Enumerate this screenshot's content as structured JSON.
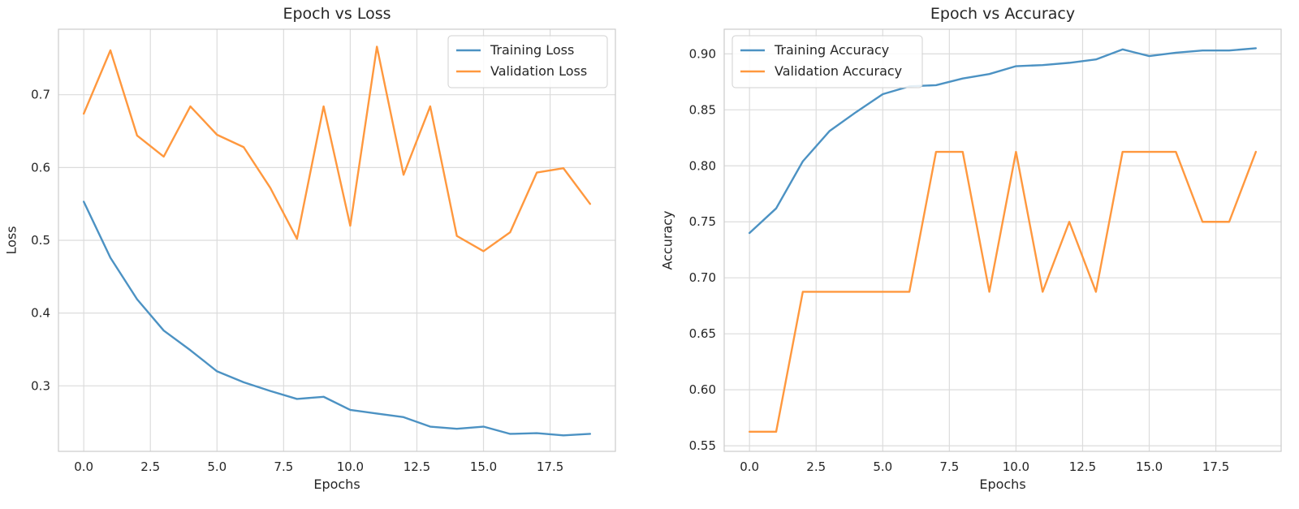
{
  "chart_data": [
    {
      "type": "line",
      "title": "Epoch vs Loss",
      "xlabel": "Epochs",
      "ylabel": "Loss",
      "xlim": [
        -0.95,
        19.95
      ],
      "ylim": [
        0.21,
        0.79
      ],
      "xticks": [
        0.0,
        2.5,
        5.0,
        7.5,
        10.0,
        12.5,
        15.0,
        17.5
      ],
      "xtick_labels": [
        "0.0",
        "2.5",
        "5.0",
        "7.5",
        "10.0",
        "12.5",
        "15.0",
        "17.5"
      ],
      "yticks": [
        0.3,
        0.4,
        0.5,
        0.6,
        0.7
      ],
      "ytick_labels": [
        "0.3",
        "0.4",
        "0.5",
        "0.6",
        "0.7"
      ],
      "grid": true,
      "legend_position": "top-right",
      "x": [
        0,
        1,
        2,
        3,
        4,
        5,
        6,
        7,
        8,
        9,
        10,
        11,
        12,
        13,
        14,
        15,
        16,
        17,
        18,
        19
      ],
      "series": [
        {
          "name": "Training Loss",
          "color": "#4c92c3",
          "values": [
            0.553,
            0.476,
            0.419,
            0.376,
            0.349,
            0.32,
            0.305,
            0.293,
            0.282,
            0.285,
            0.267,
            0.262,
            0.257,
            0.244,
            0.241,
            0.244,
            0.234,
            0.235,
            0.232,
            0.234
          ]
        },
        {
          "name": "Validation Loss",
          "color": "#ff983e",
          "values": [
            0.674,
            0.761,
            0.644,
            0.615,
            0.684,
            0.645,
            0.628,
            0.572,
            0.502,
            0.684,
            0.52,
            0.766,
            0.59,
            0.684,
            0.506,
            0.485,
            0.511,
            0.593,
            0.599,
            0.55
          ]
        }
      ]
    },
    {
      "type": "line",
      "title": "Epoch vs Accuracy",
      "xlabel": "Epochs",
      "ylabel": "Accuracy",
      "xlim": [
        -0.95,
        19.95
      ],
      "ylim": [
        0.545,
        0.922
      ],
      "xticks": [
        0.0,
        2.5,
        5.0,
        7.5,
        10.0,
        12.5,
        15.0,
        17.5
      ],
      "xtick_labels": [
        "0.0",
        "2.5",
        "5.0",
        "7.5",
        "10.0",
        "12.5",
        "15.0",
        "17.5"
      ],
      "yticks": [
        0.55,
        0.6,
        0.65,
        0.7,
        0.75,
        0.8,
        0.85,
        0.9
      ],
      "ytick_labels": [
        "0.55",
        "0.60",
        "0.65",
        "0.70",
        "0.75",
        "0.80",
        "0.85",
        "0.90"
      ],
      "grid": true,
      "legend_position": "top-left",
      "x": [
        0,
        1,
        2,
        3,
        4,
        5,
        6,
        7,
        8,
        9,
        10,
        11,
        12,
        13,
        14,
        15,
        16,
        17,
        18,
        19
      ],
      "series": [
        {
          "name": "Training Accuracy",
          "color": "#4c92c3",
          "values": [
            0.74,
            0.762,
            0.804,
            0.831,
            0.848,
            0.864,
            0.871,
            0.872,
            0.878,
            0.882,
            0.889,
            0.89,
            0.892,
            0.895,
            0.904,
            0.898,
            0.901,
            0.903,
            0.903,
            0.905
          ]
        },
        {
          "name": "Validation Accuracy",
          "color": "#ff983e",
          "values": [
            0.5625,
            0.5625,
            0.6875,
            0.6875,
            0.6875,
            0.6875,
            0.6875,
            0.8125,
            0.8125,
            0.6875,
            0.8125,
            0.6875,
            0.75,
            0.6875,
            0.8125,
            0.8125,
            0.8125,
            0.75,
            0.75,
            0.8125
          ]
        }
      ]
    }
  ]
}
